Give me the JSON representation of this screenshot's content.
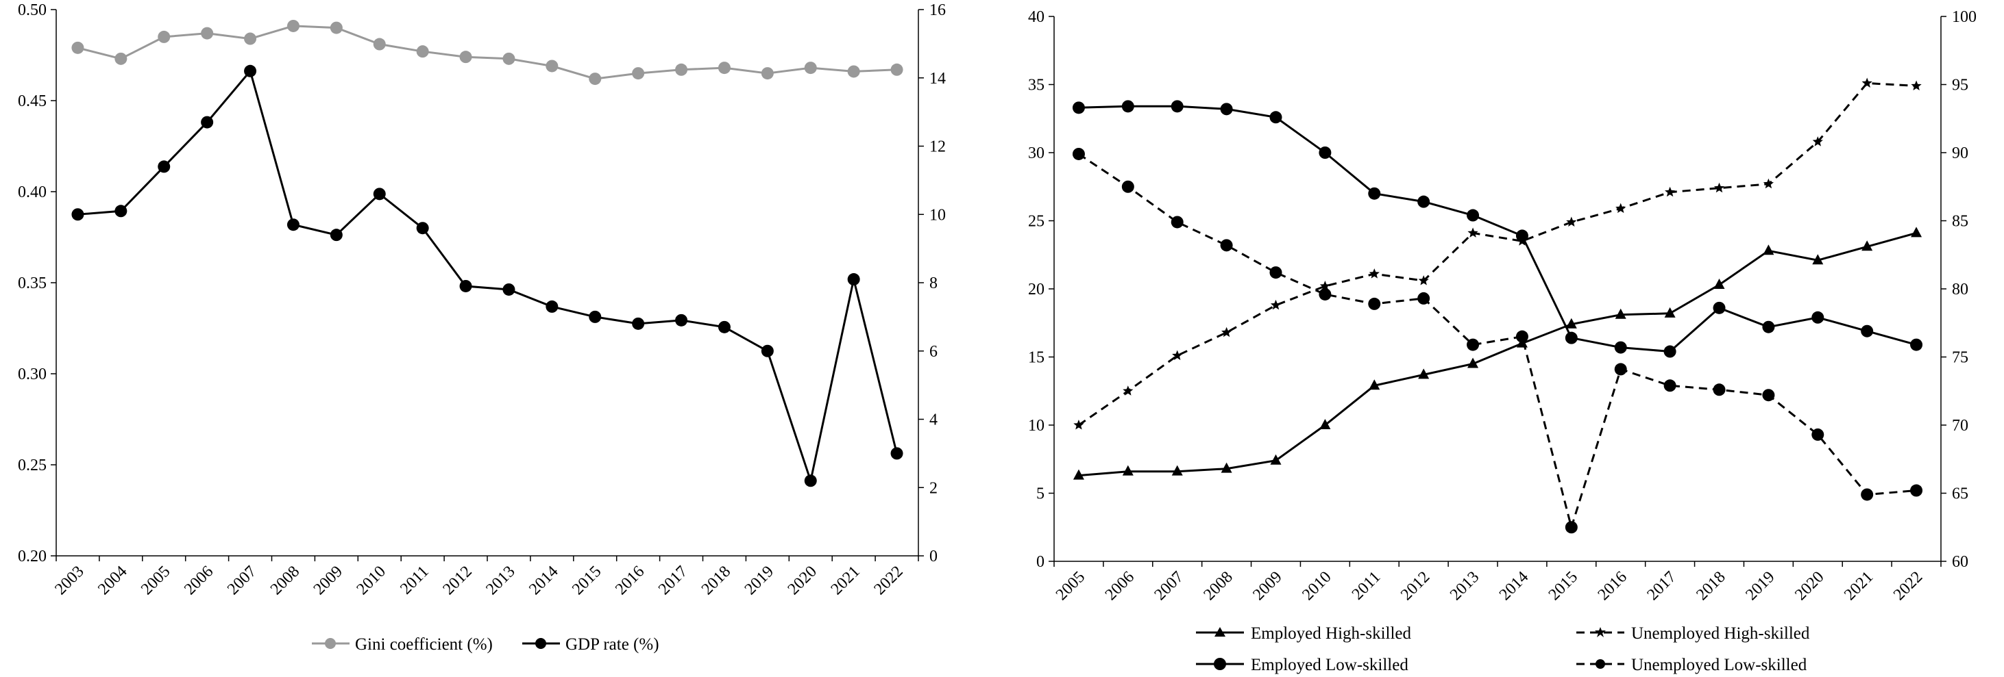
{
  "chart_data": [
    {
      "type": "line",
      "categories": [
        "2003",
        "2004",
        "2005",
        "2006",
        "2007",
        "2008",
        "2009",
        "2010",
        "2011",
        "2012",
        "2013",
        "2014",
        "2015",
        "2016",
        "2017",
        "2018",
        "2019",
        "2020",
        "2021",
        "2022"
      ],
      "series": [
        {
          "name": "Gini coefficient  (%)",
          "axis": "left",
          "color": "#999999",
          "marker": "circle",
          "values": [
            0.479,
            0.473,
            0.485,
            0.487,
            0.484,
            0.491,
            0.49,
            0.481,
            0.477,
            0.474,
            0.473,
            0.469,
            0.462,
            0.465,
            0.467,
            0.468,
            0.465,
            0.468,
            0.466,
            0.467
          ]
        },
        {
          "name": "GDP rate (%)",
          "axis": "right",
          "color": "#000000",
          "marker": "circle",
          "values": [
            10.0,
            10.1,
            11.4,
            12.7,
            14.2,
            9.7,
            9.4,
            10.6,
            9.6,
            7.9,
            7.8,
            7.3,
            7.0,
            6.8,
            6.9,
            6.7,
            6.0,
            2.2,
            8.1,
            3.0
          ]
        }
      ],
      "ylim": [
        0.2,
        0.5
      ],
      "y2lim": [
        0,
        16
      ],
      "yticks": [
        "0.20",
        "0.25",
        "0.30",
        "0.35",
        "0.40",
        "0.45",
        "0.50"
      ],
      "y2ticks": [
        "0",
        "2",
        "4",
        "6",
        "8",
        "10",
        "12",
        "14",
        "16"
      ]
    },
    {
      "type": "line",
      "categories": [
        "2005",
        "2006",
        "2007",
        "2008",
        "2009",
        "2010",
        "2011",
        "2012",
        "2013",
        "2014",
        "2015",
        "2016",
        "2017",
        "2018",
        "2019",
        "2020",
        "2021",
        "2022"
      ],
      "series": [
        {
          "name": "Employed High-skilled",
          "axis": "left",
          "dash": "solid",
          "marker": "triangle",
          "values": [
            6.3,
            6.6,
            6.6,
            6.8,
            7.4,
            10.0,
            12.9,
            13.7,
            14.5,
            16.0,
            17.4,
            18.1,
            18.2,
            20.3,
            22.8,
            22.1,
            23.1,
            24.1
          ]
        },
        {
          "name": "Unemployed High-skilled",
          "axis": "right",
          "dash": "dashed",
          "marker": "star",
          "values": [
            70.0,
            72.5,
            75.1,
            76.8,
            78.8,
            80.2,
            81.1,
            80.6,
            84.1,
            83.5,
            84.9,
            85.9,
            87.1,
            87.4,
            87.7,
            90.8,
            95.1,
            94.9
          ]
        },
        {
          "name": "Employed Low-skilled",
          "axis": "left",
          "dash": "solid",
          "marker": "circle",
          "values": [
            33.3,
            33.4,
            33.4,
            33.2,
            32.6,
            30.0,
            27.0,
            26.4,
            25.4,
            23.9,
            16.4,
            15.7,
            15.4,
            18.6,
            17.2,
            17.9,
            16.9,
            15.9
          ]
        },
        {
          "name": "Unemployed Low-skilled",
          "axis": "right",
          "dash": "dashed",
          "marker": "circle",
          "values": [
            89.9,
            87.5,
            84.9,
            83.2,
            81.2,
            79.6,
            78.9,
            79.3,
            75.9,
            76.5,
            62.5,
            74.1,
            72.9,
            72.6,
            72.2,
            69.3,
            64.9,
            65.2
          ]
        }
      ],
      "ylim": [
        0,
        40
      ],
      "y2lim": [
        60,
        100
      ],
      "yticks": [
        "0",
        "5",
        "10",
        "15",
        "20",
        "25",
        "30",
        "35",
        "40"
      ],
      "y2ticks": [
        "60",
        "65",
        "70",
        "75",
        "80",
        "85",
        "90",
        "95",
        "100"
      ]
    }
  ]
}
